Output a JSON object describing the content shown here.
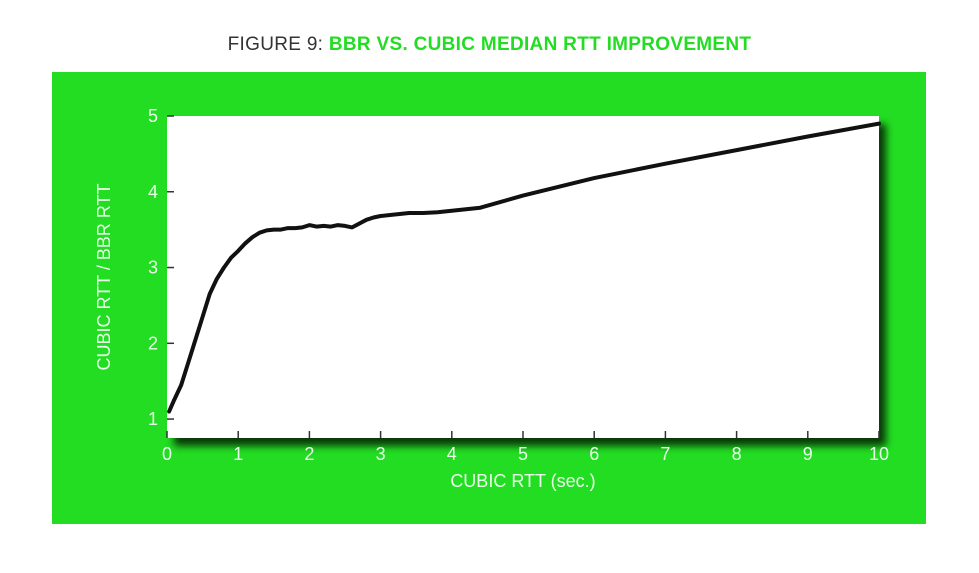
{
  "title": {
    "lead": "FIGURE 9:",
    "accent": "BBR VS. CUBIC MEDIAN RTT IMPROVEMENT"
  },
  "colors": {
    "panel": "#22dd22",
    "plot_bg": "#ffffff",
    "line": "#111111",
    "axis_text": "#e9ffe9",
    "title_accent": "#22dd22",
    "title_lead": "#333333"
  },
  "chart_data": {
    "type": "line",
    "xlabel": "CUBIC RTT (sec.)",
    "ylabel": "CUBIC RTT / BBR RTT",
    "xlim": [
      0,
      10
    ],
    "ylim": [
      0.75,
      5
    ],
    "xticks": [
      0,
      1,
      2,
      3,
      4,
      5,
      6,
      7,
      8,
      9,
      10
    ],
    "yticks": [
      1,
      2,
      3,
      4,
      5
    ],
    "grid": false,
    "series": [
      {
        "x": [
          0.03,
          0.1,
          0.2,
          0.3,
          0.4,
          0.5,
          0.6,
          0.7,
          0.8,
          0.9,
          1.0,
          1.1,
          1.2,
          1.3,
          1.4,
          1.5,
          1.6,
          1.7,
          1.8,
          1.9,
          2.0,
          2.1,
          2.2,
          2.3,
          2.4,
          2.5,
          2.6,
          2.7,
          2.8,
          2.9,
          3.0,
          3.2,
          3.4,
          3.6,
          3.8,
          4.0,
          4.2,
          4.4,
          5.0,
          6.0,
          7.0,
          8.0,
          9.0,
          10.0
        ],
        "values": [
          1.1,
          1.25,
          1.45,
          1.75,
          2.05,
          2.35,
          2.65,
          2.85,
          3.0,
          3.13,
          3.22,
          3.32,
          3.4,
          3.46,
          3.49,
          3.5,
          3.5,
          3.52,
          3.52,
          3.53,
          3.56,
          3.54,
          3.55,
          3.54,
          3.56,
          3.55,
          3.53,
          3.58,
          3.63,
          3.66,
          3.68,
          3.7,
          3.72,
          3.72,
          3.73,
          3.75,
          3.77,
          3.79,
          3.95,
          4.18,
          4.37,
          4.55,
          4.73,
          4.9
        ]
      }
    ]
  }
}
